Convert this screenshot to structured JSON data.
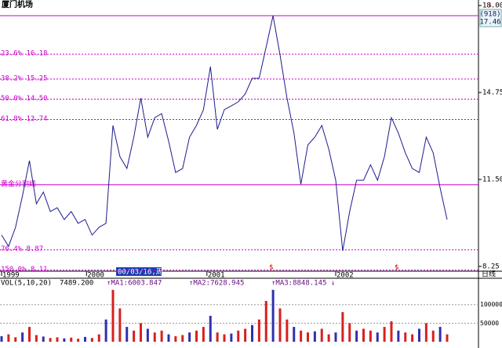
{
  "title": "厦门机场",
  "code": "(918)",
  "last_price": "17.46",
  "period_label": "日线",
  "cursor_label": "00/03/16,周",
  "markers": [
    "$",
    "$"
  ],
  "chart_data": [
    {
      "type": "line",
      "values": [
        9.42,
        9.0,
        9.71,
        10.88,
        12.2,
        10.59,
        11.03,
        10.3,
        10.44,
        10.0,
        10.3,
        9.86,
        10.0,
        9.42,
        9.71,
        9.86,
        13.52,
        12.35,
        11.91,
        13.08,
        14.54,
        13.08,
        13.81,
        13.96,
        12.93,
        11.76,
        11.91,
        13.08,
        13.52,
        14.11,
        15.72,
        13.37,
        14.11,
        14.25,
        14.4,
        14.69,
        15.28,
        15.28,
        16.45,
        17.62,
        16.16,
        14.54,
        13.23,
        11.32,
        12.79,
        13.08,
        13.52,
        12.64,
        11.47,
        8.83,
        10.3,
        11.47,
        11.47,
        12.05,
        11.47,
        12.35,
        13.81,
        13.23,
        12.49,
        11.91,
        11.76,
        13.08,
        12.49,
        11.18,
        10.0
      ],
      "color": "#1c1c8e",
      "ylim": [
        8.1,
        18.06
      ],
      "yticks": [
        {
          "value": 18,
          "label": "18.00"
        },
        14.75,
        {
          "value": 11.5,
          "label": "11.50"
        },
        8.25
      ],
      "xlim": [
        0,
        64
      ],
      "xticks": [
        {
          "value": 0,
          "label": "1999"
        },
        {
          "value": 12.2,
          "label": "2000"
        },
        {
          "value": 29.5,
          "label": "2001"
        },
        {
          "value": 48,
          "label": "2002"
        }
      ],
      "levels": [
        {
          "value": 17.62
        },
        {
          "value": 16.18,
          "label": "23.6% 16.18"
        },
        {
          "value": 15.25,
          "label": "38.2% 15.25"
        },
        {
          "value": 14.5,
          "label": "50.0% 14.50"
        },
        {
          "value": 13.74,
          "label": "61.8% 13.74"
        },
        {
          "value": 11.3,
          "label": "黄金分割线"
        },
        {
          "value": 8.87,
          "label": "76.4% 8.87"
        },
        {
          "value": 8.11,
          "label": "150.0% 8.11"
        }
      ],
      "level_color": "#cc00cc"
    },
    {
      "type": "bar",
      "title": "VOL(5,10,20)",
      "readouts": [
        "7489.200",
        "↑MA1:6003.847",
        "↑MA2:7628.945",
        "↑MA3:8848.145 ↓"
      ],
      "values": [
        15000,
        20000,
        12000,
        25000,
        40000,
        18000,
        14000,
        10000,
        12000,
        9000,
        11000,
        8000,
        13000,
        10000,
        20000,
        60000,
        140000,
        90000,
        40000,
        30000,
        50000,
        35000,
        25000,
        30000,
        20000,
        15000,
        18000,
        25000,
        30000,
        40000,
        70000,
        25000,
        20000,
        22000,
        30000,
        35000,
        45000,
        60000,
        110000,
        140000,
        90000,
        60000,
        40000,
        30000,
        25000,
        28000,
        35000,
        20000,
        25000,
        80000,
        50000,
        30000,
        35000,
        30000,
        25000,
        40000,
        55000,
        30000,
        25000,
        20000,
        35000,
        50000,
        30000,
        40000,
        20000
      ],
      "color": "#d82020",
      "ylim": [
        0,
        165000
      ],
      "yticks": [
        100000,
        50000
      ]
    }
  ]
}
